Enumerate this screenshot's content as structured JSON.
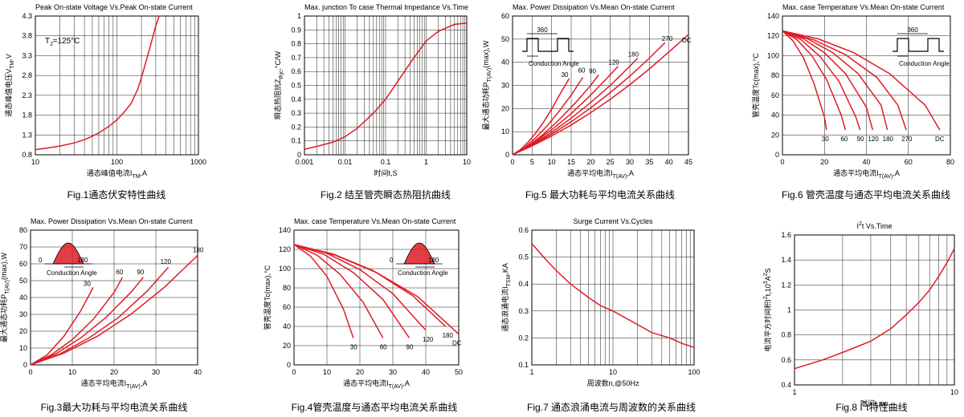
{
  "chart_data": [
    {
      "type": "line",
      "title": "Peak On-state Voltage Vs.Peak On-state Current",
      "xlabel": "通态峰值电流I",
      "xlabel_sub": "TM",
      "xlabel_unit": ",A",
      "ylabel": "通态峰值电压V",
      "ylabel_sub": "TM",
      "ylabel_unit": ",V",
      "caption": "Fig.1通态伏安特性曲线",
      "xscale": "log",
      "xlim": [
        10,
        1000
      ],
      "ylim": [
        0.8,
        4.3
      ],
      "xticks": [
        "10",
        "100",
        "1000"
      ],
      "yticks": [
        "0.8",
        "1.3",
        "1.8",
        "2.3",
        "2.8",
        "3.3",
        "3.8",
        "4.3"
      ],
      "annotation": "T",
      "annotation_sub": "J",
      "annotation_rest": "=125°C",
      "series": [
        {
          "x": [
            10,
            15,
            20,
            30,
            40,
            50,
            60,
            80,
            100,
            120,
            150,
            180,
            200,
            250,
            300,
            330
          ],
          "y": [
            0.93,
            0.98,
            1.02,
            1.1,
            1.18,
            1.27,
            1.35,
            1.52,
            1.68,
            1.85,
            2.1,
            2.45,
            2.75,
            3.45,
            4.05,
            4.3
          ]
        }
      ]
    },
    {
      "type": "line",
      "title": "Max. junction To case Thermal Impedance Vs.Time",
      "xlabel": "时间t,S",
      "ylabel": "瞬态热阻抗Z",
      "ylabel_sub": "thjc",
      "ylabel_unit": ",°C/W",
      "caption": "Fig.2 结至管壳瞬态热阻抗曲线",
      "xscale": "log",
      "xlim": [
        0.001,
        10
      ],
      "ylim": [
        0,
        1.0
      ],
      "xticks": [
        "0.001",
        "0.01",
        "0.1",
        "1",
        "10"
      ],
      "yticks": [
        "0",
        "0.1",
        "0.2",
        "0.3",
        "0.4",
        "0.5",
        "0.6",
        "0.7",
        "0.8",
        "0.9",
        "1"
      ],
      "series": [
        {
          "x": [
            0.001,
            0.002,
            0.005,
            0.01,
            0.02,
            0.05,
            0.1,
            0.2,
            0.5,
            1,
            2,
            5,
            10
          ],
          "y": [
            0.04,
            0.06,
            0.09,
            0.13,
            0.19,
            0.3,
            0.4,
            0.53,
            0.7,
            0.82,
            0.89,
            0.94,
            0.95
          ]
        }
      ]
    },
    {
      "type": "line",
      "title": "Max. Power Dissipation Vs.Mean On-state Current",
      "xlabel": "通态平均电流I",
      "xlabel_sub": "T(AV)",
      "xlabel_unit": ",A",
      "ylabel": "最大通态功耗P",
      "ylabel_sub": "T(AV)",
      "ylabel_unit": "(max),W",
      "caption": "Fig.5 最大功耗与平均电流关系曲线",
      "xlim": [
        0,
        45
      ],
      "ylim": [
        0,
        60
      ],
      "xticks": [
        "0",
        "5",
        "10",
        "15",
        "20",
        "25",
        "30",
        "35",
        "40",
        "45"
      ],
      "yticks": [
        "0",
        "10",
        "20",
        "30",
        "40",
        "50",
        "60"
      ],
      "inset": {
        "kind": "square",
        "angle_label": "360",
        "caption": "Conduction Angle"
      },
      "series": [
        {
          "name": "30",
          "x": [
            0,
            2,
            4,
            6,
            8,
            10,
            12,
            14.5
          ],
          "y": [
            0,
            2.2,
            5.5,
            9.5,
            14.3,
            19.7,
            25.8,
            33
          ]
        },
        {
          "name": "60",
          "x": [
            0,
            3,
            6,
            9,
            12,
            15,
            18
          ],
          "y": [
            0,
            3,
            7.5,
            12.8,
            19,
            25.8,
            33.5
          ]
        },
        {
          "name": "90",
          "x": [
            0,
            4,
            8,
            12,
            16,
            20,
            22
          ],
          "y": [
            0,
            3.8,
            9,
            15.3,
            22.3,
            30,
            34.5
          ]
        },
        {
          "name": "120",
          "x": [
            0,
            5,
            10,
            15,
            20,
            24,
            27
          ],
          "y": [
            0,
            4.7,
            10.8,
            17.8,
            25.8,
            32.8,
            38.3
          ]
        },
        {
          "name": "180",
          "x": [
            0,
            5,
            10,
            15,
            20,
            25,
            30,
            32
          ],
          "y": [
            0,
            4.4,
            9.7,
            15.8,
            22.6,
            30,
            38.3,
            41.8
          ]
        },
        {
          "name": "270",
          "x": [
            0,
            5,
            10,
            15,
            20,
            25,
            30,
            35,
            39
          ],
          "y": [
            0,
            4.1,
            8.9,
            14.3,
            20.3,
            26.9,
            34,
            41.8,
            48.5
          ]
        },
        {
          "name": "DC",
          "x": [
            0,
            5,
            10,
            15,
            20,
            25,
            30,
            35,
            40,
            45
          ],
          "y": [
            0,
            3.8,
            8.1,
            12.9,
            18.2,
            24,
            30.3,
            37.1,
            44.5,
            52
          ]
        }
      ]
    },
    {
      "type": "line",
      "title": "Max. case Temperature Vs.Mean On-state Current",
      "xlabel": "通态平均电流I",
      "xlabel_sub": "T(AV)",
      "xlabel_unit": ",A",
      "ylabel": "管壳温度Tc(max),°C",
      "caption": "Fig.6 管壳温度与通态平均电流关系曲线",
      "xlim": [
        0,
        80
      ],
      "ylim": [
        0,
        140
      ],
      "xticks": [
        "0",
        "20",
        "40",
        "60",
        "80"
      ],
      "yticks": [
        "0",
        "20",
        "40",
        "60",
        "80",
        "100",
        "120",
        "140"
      ],
      "inset": {
        "kind": "square",
        "angle_label": "360",
        "caption": "Conduction Angle"
      },
      "series": [
        {
          "name": "30",
          "x": [
            0,
            5,
            10,
            15,
            20,
            21
          ],
          "y": [
            125,
            115,
            98,
            72,
            38,
            25
          ]
        },
        {
          "name": "60",
          "x": [
            0,
            7,
            14,
            21,
            28,
            30
          ],
          "y": [
            125,
            116,
            100,
            76,
            40,
            25
          ]
        },
        {
          "name": "90",
          "x": [
            0,
            9,
            18,
            27,
            35,
            37
          ],
          "y": [
            125,
            116,
            99,
            74,
            38,
            25
          ]
        },
        {
          "name": "120",
          "x": [
            0,
            10,
            20,
            30,
            40,
            43
          ],
          "y": [
            125,
            117,
            103,
            82,
            48,
            25
          ]
        },
        {
          "name": "180",
          "x": [
            0,
            12,
            24,
            36,
            47,
            50
          ],
          "y": [
            125,
            117,
            103,
            82,
            50,
            25
          ]
        },
        {
          "name": "270",
          "x": [
            0,
            15,
            30,
            45,
            55,
            59
          ],
          "y": [
            125,
            116,
            101,
            78,
            50,
            25
          ]
        },
        {
          "name": "DC",
          "x": [
            0,
            17,
            34,
            51,
            68,
            75
          ],
          "y": [
            125,
            117,
            103,
            82,
            50,
            25
          ]
        }
      ]
    },
    {
      "type": "line",
      "title": "Max. Power Dissipation Vs.Mean On-state Current",
      "xlabel": "通态平均电流I",
      "xlabel_sub": "T(AV)",
      "xlabel_unit": ",A",
      "ylabel": "最大通态功耗P",
      "ylabel_sub": "T(AV)",
      "ylabel_unit": "(max),W",
      "caption": "Fig.3最大功耗与平均电流关系曲线",
      "xlim": [
        0,
        40
      ],
      "ylim": [
        0,
        80
      ],
      "xticks": [
        "0",
        "10",
        "20",
        "30",
        "40"
      ],
      "yticks": [
        "0",
        "10",
        "20",
        "30",
        "40",
        "50",
        "60",
        "70",
        "80"
      ],
      "inset": {
        "kind": "sine",
        "angle_low": "0",
        "angle_high": "180",
        "caption": "Conduction Angle"
      },
      "series": [
        {
          "name": "30",
          "x": [
            0,
            4,
            8,
            12,
            15
          ],
          "y": [
            0,
            6,
            17,
            32,
            46
          ]
        },
        {
          "name": "60",
          "x": [
            0,
            5,
            10,
            15,
            20,
            22
          ],
          "y": [
            0,
            6,
            15,
            27,
            43,
            52
          ]
        },
        {
          "name": "90",
          "x": [
            0,
            6,
            12,
            18,
            24,
            27
          ],
          "y": [
            0,
            6.5,
            16,
            28,
            43,
            52
          ]
        },
        {
          "name": "120",
          "x": [
            0,
            7,
            14,
            21,
            28,
            33
          ],
          "y": [
            0,
            6.5,
            16,
            28,
            44,
            58
          ]
        },
        {
          "name": "180",
          "x": [
            0,
            8,
            16,
            24,
            32,
            40
          ],
          "y": [
            0,
            7,
            17,
            30,
            46,
            65
          ]
        }
      ]
    },
    {
      "type": "line",
      "title": "Max. case Temperature Vs.Mean On-state Current",
      "xlabel": "通态平均电流I",
      "xlabel_sub": "T(AV)",
      "xlabel_unit": ",A",
      "ylabel": "管壳温度Tc(max),°C",
      "caption": "Fig.4管壳温度与通态平均电流关系曲线",
      "xlim": [
        0,
        50
      ],
      "ylim": [
        0,
        140
      ],
      "xticks": [
        "0",
        "10",
        "20",
        "30",
        "40",
        "50"
      ],
      "yticks": [
        "0",
        "20",
        "40",
        "60",
        "80",
        "100",
        "120",
        "140"
      ],
      "inset": {
        "kind": "sine",
        "angle_low": "0",
        "angle_high": "180",
        "caption": "Conduction Angle"
      },
      "series": [
        {
          "name": "30",
          "x": [
            0,
            5,
            10,
            15,
            18
          ],
          "y": [
            125,
            113,
            92,
            58,
            28
          ]
        },
        {
          "name": "60",
          "x": [
            0,
            7,
            14,
            21,
            27
          ],
          "y": [
            125,
            114,
            94,
            65,
            28
          ]
        },
        {
          "name": "90",
          "x": [
            0,
            9,
            18,
            27,
            35
          ],
          "y": [
            125,
            115,
            96,
            68,
            28
          ]
        },
        {
          "name": "120",
          "x": [
            0,
            10,
            20,
            30,
            40
          ],
          "y": [
            125,
            116,
            99,
            74,
            36
          ]
        },
        {
          "name": "180",
          "x": [
            0,
            12,
            24,
            36,
            46
          ],
          "y": [
            125,
            115,
            98,
            72,
            40
          ]
        },
        {
          "name": "DC",
          "x": [
            0,
            12.5,
            25,
            37.5,
            50
          ],
          "y": [
            125,
            114,
            96,
            71,
            32
          ]
        }
      ]
    },
    {
      "type": "line",
      "title": "Surge Current Vs.Cycles",
      "xlabel": "周波数n,@50Hz",
      "ylabel": "通态浪涌电流I",
      "ylabel_sub": "TSM",
      "ylabel_unit": ",KA",
      "caption": "Fig.7 通态浪涌电流与周波数的关系曲线",
      "xscale": "log",
      "xlim": [
        1,
        100
      ],
      "ylim": [
        0.1,
        0.6
      ],
      "xticks": [
        "1",
        "10",
        "100"
      ],
      "yticks": [
        "0.1",
        "0.2",
        "0.3",
        "0.4",
        "0.5",
        "0.6"
      ],
      "series": [
        {
          "x": [
            1,
            1.5,
            2,
            3,
            5,
            7,
            10,
            20,
            30,
            50,
            70,
            100
          ],
          "y": [
            0.55,
            0.49,
            0.45,
            0.4,
            0.35,
            0.32,
            0.3,
            0.25,
            0.22,
            0.2,
            0.18,
            0.165
          ]
        }
      ]
    },
    {
      "type": "line",
      "title": "I",
      "title_sup": "2",
      "title_rest": "t  Vs.Time",
      "xlabel": "时间t,ms",
      "ylabel": "电流平方时间积I",
      "ylabel_sup": "2",
      "ylabel_mid": "t,10",
      "ylabel_sup2": "3",
      "ylabel_unit": "A",
      "ylabel_sup3": "2",
      "ylabel_tail": "S",
      "caption": "Fig.8 I",
      "caption_sup": "2",
      "caption_rest": "t特性曲线",
      "xscale": "log",
      "xlim": [
        1,
        10
      ],
      "ylim": [
        0.4,
        1.6
      ],
      "xticks": [
        "1",
        "10"
      ],
      "yticks": [
        "0.4",
        "0.6",
        "0.8",
        "1",
        "1.2",
        "1.4",
        "1.6"
      ],
      "series": [
        {
          "x": [
            1,
            1.5,
            2,
            3,
            4,
            5,
            6,
            7,
            8,
            9,
            10
          ],
          "y": [
            0.53,
            0.6,
            0.66,
            0.75,
            0.85,
            0.96,
            1.06,
            1.16,
            1.27,
            1.38,
            1.49
          ]
        }
      ]
    }
  ]
}
